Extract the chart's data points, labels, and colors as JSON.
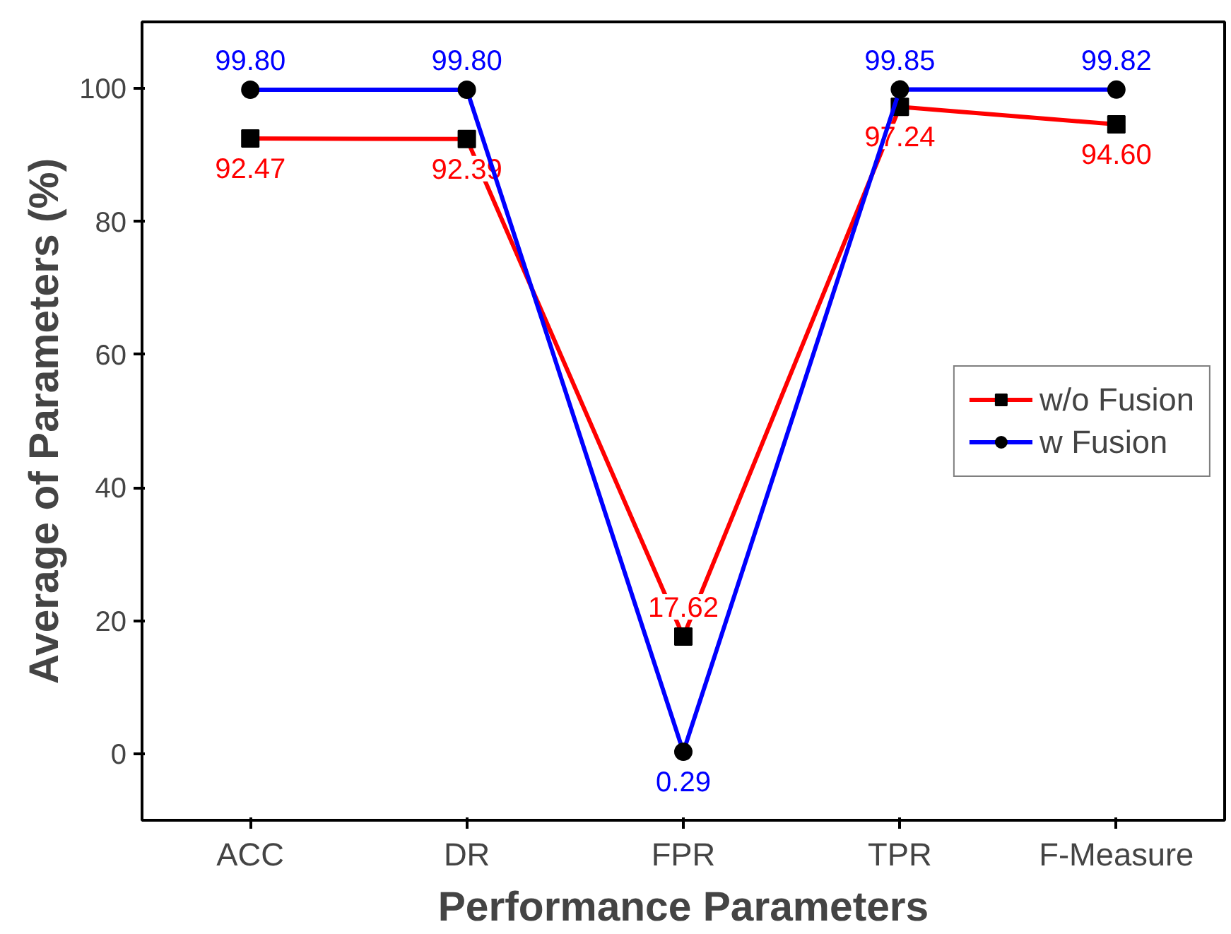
{
  "chart_data": {
    "type": "line",
    "xlabel": "Performance Parameters",
    "ylabel": "Average of Parameters (%)",
    "categories": [
      "ACC",
      "DR",
      "FPR",
      "TPR",
      "F-Measure"
    ],
    "series": [
      {
        "name": "w/o Fusion",
        "color": "#ff0000",
        "values": [
          92.47,
          92.39,
          17.62,
          97.24,
          94.6
        ],
        "value_labels": [
          "92.47",
          "92.39",
          "17.62",
          "97.24",
          "94.60"
        ],
        "marker": "square"
      },
      {
        "name": "w Fusion",
        "color": "#0000ff",
        "values": [
          99.8,
          99.8,
          0.29,
          99.85,
          99.82
        ],
        "value_labels": [
          "99.80",
          "99.80",
          "0.29",
          "99.85",
          "99.82"
        ],
        "marker": "circle"
      }
    ],
    "ylim": [
      -10,
      110
    ],
    "yticks": [
      0,
      20,
      40,
      60,
      80,
      100
    ],
    "grid": false,
    "legend": "right",
    "line_style": "solid"
  }
}
